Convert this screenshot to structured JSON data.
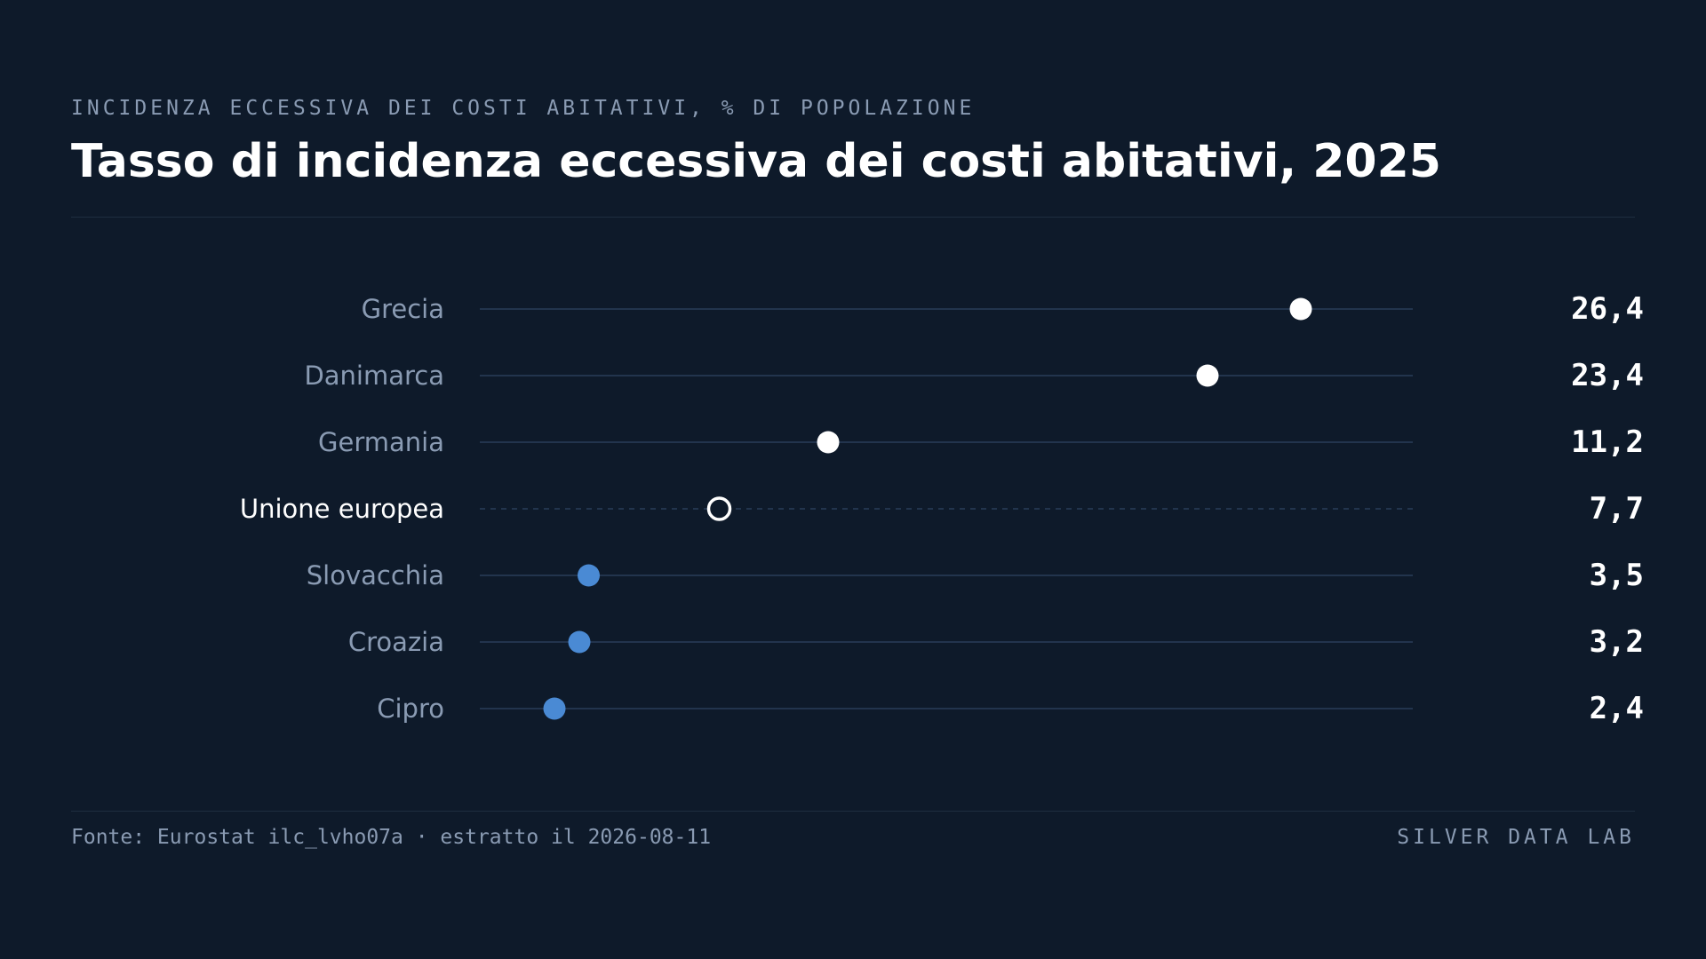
{
  "header": {
    "kicker": "INCIDENZA ECCESSIVA DEI COSTI ABITATIVI, % DI POPOLAZIONE",
    "title": "Tasso di incidenza eccessiva dei costi abitativi, 2025"
  },
  "footer": {
    "source": "Fonte: Eurostat ilc_lvho07a · estratto il 2026-08-11",
    "brand": "SILVER DATA LAB"
  },
  "colors": {
    "background": "#0e1a2a",
    "high": "#ffffff",
    "low": "#4a8ad4",
    "reference": "#ffffff",
    "track": "#22344d",
    "label": "#8a9bb3",
    "value": "#ffffff"
  },
  "chart_data": {
    "type": "dot",
    "title": "Tasso di incidenza eccessiva dei costi abitativi, 2025",
    "xlabel": "",
    "ylabel": "",
    "xlim": [
      0,
      30
    ],
    "grid": false,
    "reference_category": "Unione europea",
    "categories": [
      "Grecia",
      "Danimarca",
      "Germania",
      "Unione europea",
      "Slovacchia",
      "Croazia",
      "Cipro"
    ],
    "values": [
      26.4,
      23.4,
      11.2,
      7.7,
      3.5,
      3.2,
      2.4
    ],
    "value_labels": [
      "26,4",
      "23,4",
      "11,2",
      "7,7",
      "3,5",
      "3,2",
      "2,4"
    ]
  }
}
